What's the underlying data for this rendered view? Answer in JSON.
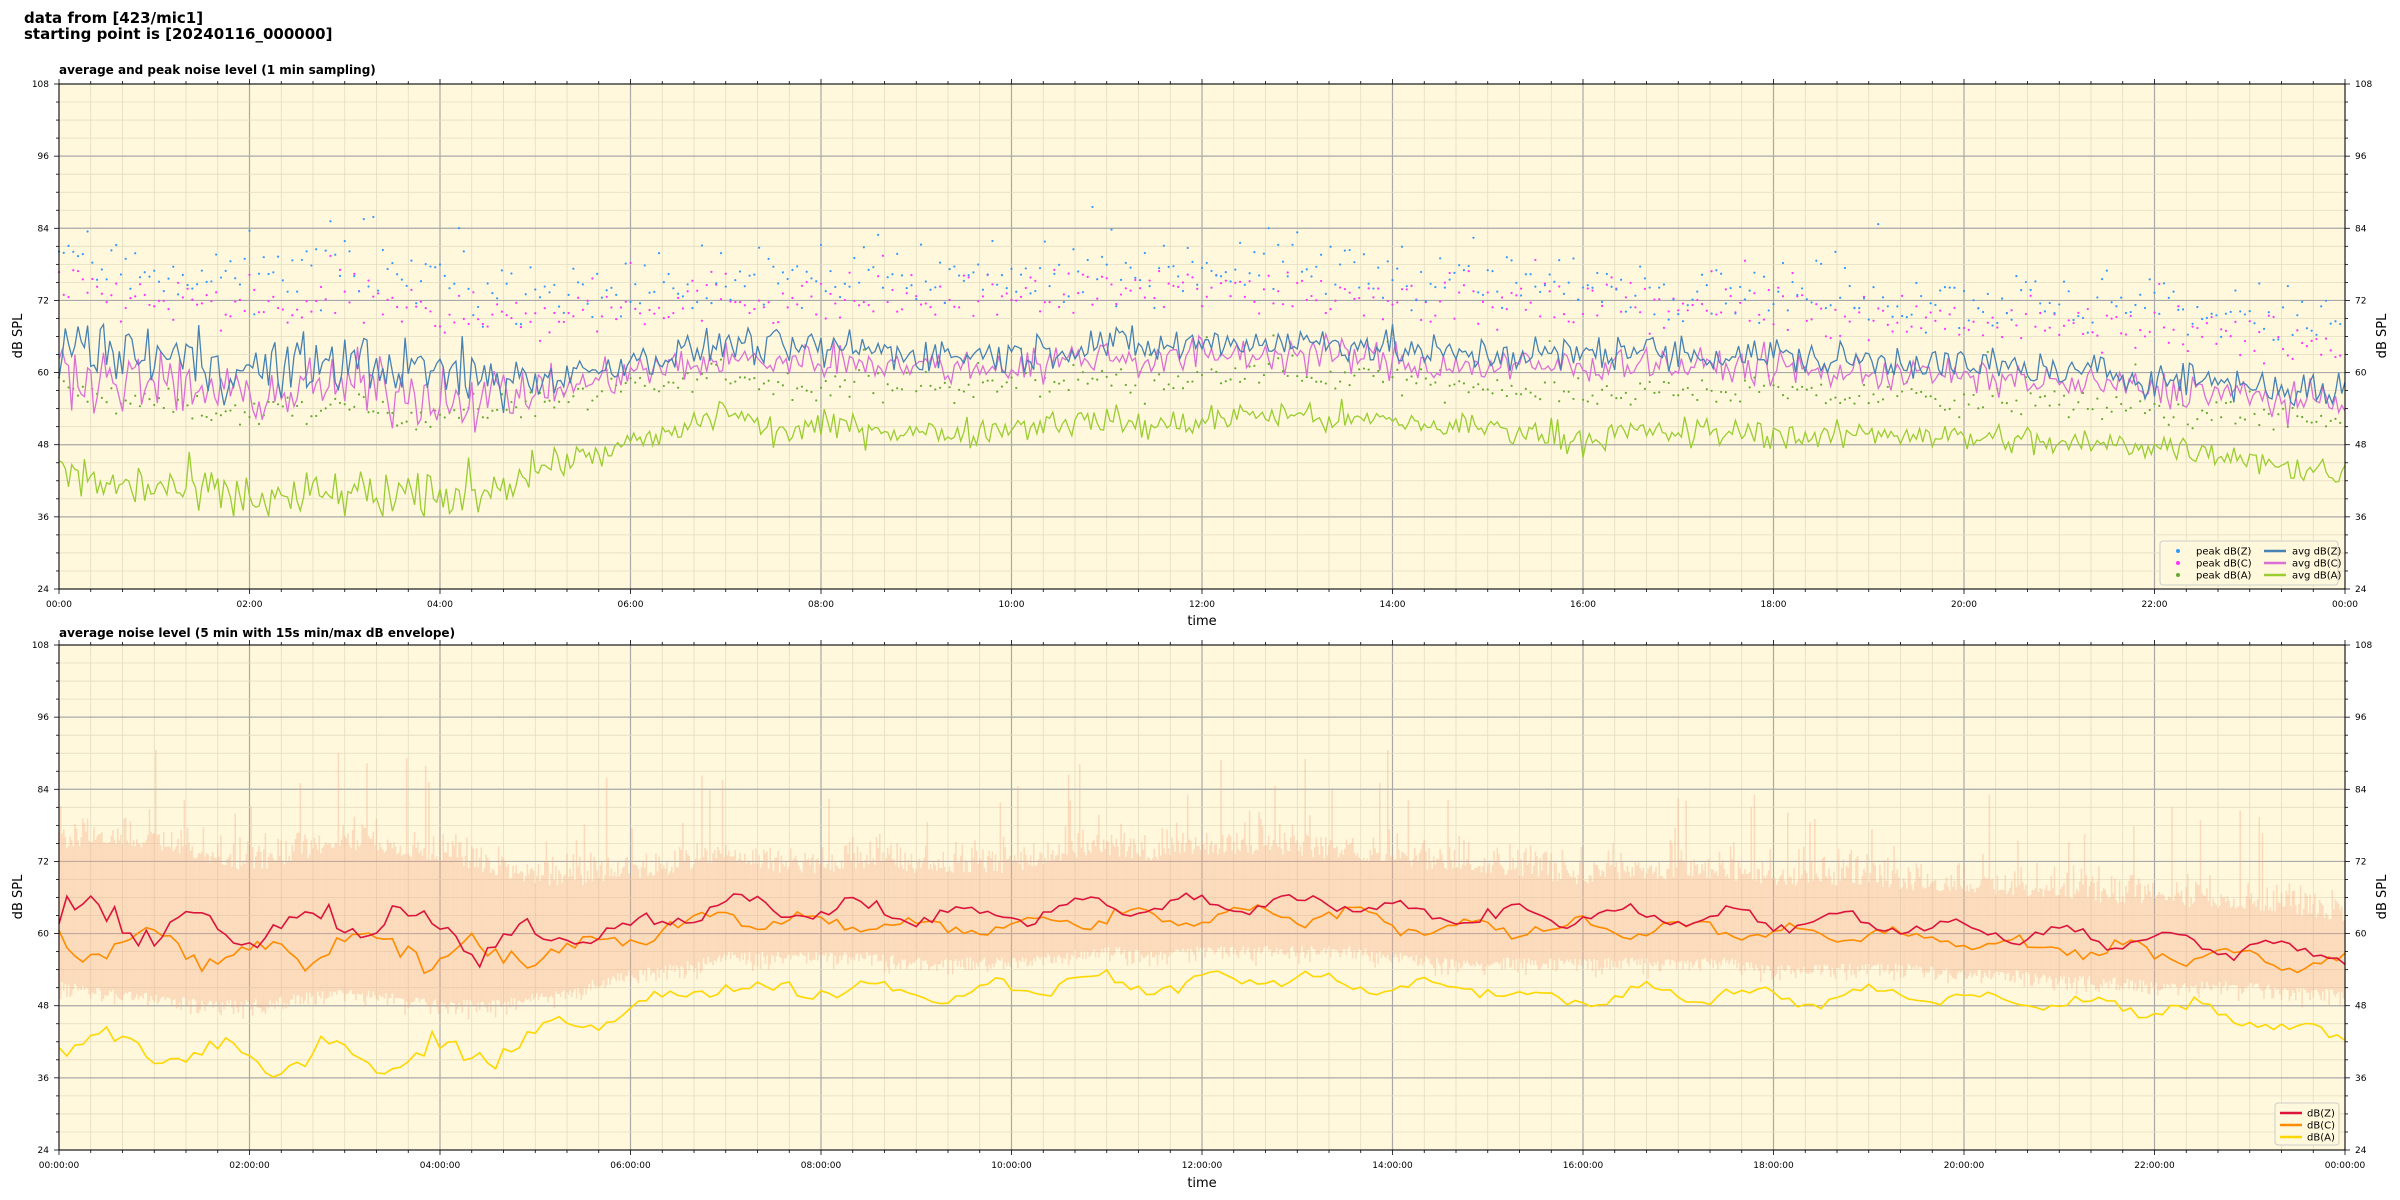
{
  "header": {
    "line1": "data from [423/mic1]",
    "line2": "starting point is [20240116_000000]"
  },
  "colors": {
    "background": "#fff8dc",
    "peak_z": "#3399ff",
    "peak_c": "#ff33ff",
    "peak_a": "#66aa33",
    "avg_z": "#4682b4",
    "avg_c": "#da70d6",
    "avg_a": "#9acd32",
    "env_z": "#dc143c",
    "env_c": "#ff8c00",
    "env_a": "#ffd700",
    "envelope_fill": "#f4a582"
  },
  "chart_data": [
    {
      "type": "line",
      "title": "average and peak noise level (1 min sampling)",
      "xlabel": "time",
      "ylabel": "dB SPL",
      "ylim": [
        24,
        108
      ],
      "yticks": [
        "24",
        "36",
        "48",
        "60",
        "72",
        "84",
        "96",
        "108"
      ],
      "xlim_hours": [
        0,
        24
      ],
      "xticks": [
        "00:00",
        "02:00",
        "04:00",
        "06:00",
        "08:00",
        "10:00",
        "12:00",
        "14:00",
        "16:00",
        "18:00",
        "20:00",
        "22:00",
        "00:00"
      ],
      "grid": true,
      "legend_position": "bottom-right",
      "x_hours": [
        0,
        0.5,
        1,
        1.5,
        2,
        2.5,
        3,
        3.5,
        4,
        4.5,
        5,
        5.5,
        6,
        6.5,
        7,
        7.5,
        8,
        8.5,
        9,
        9.5,
        10,
        10.5,
        11,
        11.5,
        12,
        12.5,
        13,
        13.5,
        14,
        14.5,
        15,
        15.5,
        16,
        16.5,
        17,
        17.5,
        18,
        18.5,
        19,
        19.5,
        20,
        20.5,
        21,
        21.5,
        22,
        22.5,
        23,
        23.5,
        24
      ],
      "series": [
        {
          "name": "avg dB(Z)",
          "kind": "line",
          "values": [
            65,
            63,
            63,
            62,
            60,
            61,
            62,
            61,
            60,
            59,
            59,
            60,
            62,
            63,
            65,
            64,
            64,
            64,
            63,
            63,
            63,
            64,
            65,
            64,
            65,
            65,
            65,
            65,
            64,
            63,
            63,
            63,
            63,
            64,
            63,
            63,
            63,
            62,
            62,
            62,
            61,
            61,
            60,
            60,
            59,
            59,
            58,
            57,
            57
          ]
        },
        {
          "name": "avg dB(C)",
          "kind": "line",
          "values": [
            61,
            59,
            58,
            57,
            56,
            57,
            58,
            57,
            56,
            56,
            57,
            58,
            60,
            61,
            62,
            62,
            62,
            62,
            61,
            61,
            61,
            62,
            63,
            62,
            63,
            63,
            63,
            63,
            62,
            61,
            61,
            61,
            61,
            62,
            61,
            61,
            61,
            60,
            60,
            60,
            59,
            59,
            58,
            58,
            57,
            57,
            56,
            55,
            55
          ]
        },
        {
          "name": "avg dB(A)",
          "kind": "line",
          "values": [
            44,
            41,
            41,
            40,
            39,
            39,
            40,
            39,
            39,
            41,
            44,
            46,
            48,
            50,
            54,
            50,
            51,
            51,
            50,
            50,
            51,
            52,
            52,
            51,
            52,
            53,
            53,
            52,
            52,
            51,
            51,
            50,
            49,
            50,
            50,
            50,
            50,
            49,
            50,
            50,
            49,
            49,
            48,
            48,
            48,
            47,
            46,
            44,
            43
          ]
        },
        {
          "name": "peak dB(Z)",
          "kind": "scatter",
          "values": [
            79,
            78,
            77,
            76,
            76,
            77,
            77,
            77,
            76,
            74,
            73,
            73,
            74,
            75,
            76,
            75,
            75,
            76,
            75,
            75,
            75,
            77,
            78,
            77,
            78,
            78,
            78,
            77,
            77,
            75,
            75,
            75,
            74,
            75,
            74,
            74,
            74,
            73,
            73,
            73,
            72,
            72,
            71,
            71,
            71,
            70,
            70,
            69,
            68
          ]
        },
        {
          "name": "peak dB(C)",
          "kind": "scatter",
          "values": [
            74,
            73,
            72,
            71,
            70,
            71,
            72,
            71,
            70,
            69,
            69,
            70,
            71,
            72,
            73,
            72,
            72,
            72,
            72,
            72,
            72,
            73,
            74,
            73,
            74,
            74,
            74,
            73,
            73,
            72,
            71,
            71,
            71,
            72,
            71,
            71,
            71,
            70,
            70,
            69,
            69,
            68,
            68,
            67,
            67,
            66,
            66,
            65,
            64
          ]
        },
        {
          "name": "peak dB(A)",
          "kind": "scatter",
          "values": [
            58,
            55,
            55,
            54,
            53,
            54,
            54,
            53,
            53,
            54,
            55,
            56,
            57,
            58,
            60,
            58,
            58,
            58,
            58,
            57,
            58,
            59,
            59,
            58,
            59,
            60,
            60,
            59,
            59,
            58,
            58,
            57,
            56,
            57,
            57,
            57,
            57,
            56,
            56,
            56,
            55,
            55,
            55,
            54,
            54,
            53,
            53,
            52,
            51
          ]
        }
      ],
      "legend": [
        "peak dB(Z)",
        "peak dB(C)",
        "peak dB(A)",
        "avg dB(Z)",
        "avg dB(C)",
        "avg dB(A)"
      ]
    },
    {
      "type": "line",
      "title": "average noise level (5 min with 15s min/max dB envelope)",
      "xlabel": "time",
      "ylabel": "dB SPL",
      "ylim": [
        24,
        108
      ],
      "yticks": [
        "24",
        "36",
        "48",
        "60",
        "72",
        "84",
        "96",
        "108"
      ],
      "xlim_hours": [
        0,
        24
      ],
      "xticks": [
        "00:00:00",
        "02:00:00",
        "04:00:00",
        "06:00:00",
        "08:00:00",
        "10:00:00",
        "12:00:00",
        "14:00:00",
        "16:00:00",
        "18:00:00",
        "20:00:00",
        "22:00:00",
        "00:00:00"
      ],
      "grid": true,
      "legend_position": "bottom-right",
      "x_hours": [
        0,
        0.5,
        1,
        1.5,
        2,
        2.5,
        3,
        3.5,
        4,
        4.5,
        5,
        5.5,
        6,
        6.5,
        7,
        7.5,
        8,
        8.5,
        9,
        9.5,
        10,
        10.5,
        11,
        11.5,
        12,
        12.5,
        13,
        13.5,
        14,
        14.5,
        15,
        15.5,
        16,
        16.5,
        17,
        17.5,
        18,
        18.5,
        19,
        19.5,
        20,
        20.5,
        21,
        21.5,
        22,
        22.5,
        23,
        23.5,
        24
      ],
      "series": [
        {
          "name": "dB(Z)",
          "kind": "line",
          "values": [
            63,
            62,
            62,
            61,
            60,
            61,
            62,
            62,
            60,
            59,
            59,
            60,
            61,
            63,
            65,
            64,
            64,
            64,
            63,
            63,
            63,
            64,
            65,
            64,
            65,
            65,
            65,
            65,
            64,
            63,
            63,
            63,
            63,
            63,
            63,
            63,
            62,
            62,
            62,
            61,
            61,
            60,
            60,
            59,
            59,
            58,
            58,
            57,
            57
          ]
        },
        {
          "name": "dB(C)",
          "kind": "line",
          "values": [
            59,
            58,
            58,
            57,
            56,
            57,
            58,
            58,
            57,
            56,
            57,
            58,
            59,
            61,
            63,
            62,
            62,
            62,
            61,
            61,
            61,
            62,
            63,
            62,
            63,
            63,
            63,
            63,
            62,
            61,
            61,
            61,
            61,
            61,
            61,
            61,
            60,
            60,
            60,
            59,
            59,
            58,
            58,
            57,
            57,
            56,
            56,
            55,
            55
          ]
        },
        {
          "name": "dB(A)",
          "kind": "line",
          "values": [
            43,
            41,
            41,
            40,
            39,
            39,
            40,
            39,
            39,
            40,
            44,
            45,
            48,
            49,
            52,
            50,
            51,
            51,
            50,
            50,
            51,
            52,
            52,
            51,
            52,
            53,
            52,
            52,
            51,
            51,
            51,
            49,
            49,
            50,
            50,
            50,
            49,
            49,
            50,
            50,
            49,
            49,
            48,
            48,
            48,
            47,
            46,
            44,
            43
          ]
        },
        {
          "name": "envelope max",
          "kind": "band-upper",
          "values": [
            74,
            75,
            74,
            72,
            70,
            72,
            74,
            73,
            72,
            70,
            68,
            68,
            69,
            70,
            72,
            70,
            70,
            71,
            70,
            70,
            70,
            72,
            73,
            72,
            73,
            73,
            73,
            72,
            72,
            70,
            70,
            69,
            68,
            69,
            69,
            69,
            68,
            68,
            68,
            67,
            67,
            66,
            66,
            65,
            65,
            64,
            64,
            63,
            62
          ]
        },
        {
          "name": "envelope min",
          "kind": "band-lower",
          "values": [
            52,
            51,
            50,
            49,
            49,
            50,
            51,
            50,
            49,
            49,
            50,
            52,
            54,
            55,
            57,
            57,
            57,
            57,
            56,
            56,
            56,
            57,
            58,
            57,
            58,
            58,
            58,
            58,
            57,
            56,
            56,
            56,
            56,
            56,
            56,
            56,
            55,
            55,
            55,
            55,
            54,
            54,
            53,
            53,
            52,
            52,
            52,
            51,
            51
          ]
        }
      ],
      "legend": [
        "dB(Z)",
        "dB(C)",
        "dB(A)"
      ]
    }
  ]
}
